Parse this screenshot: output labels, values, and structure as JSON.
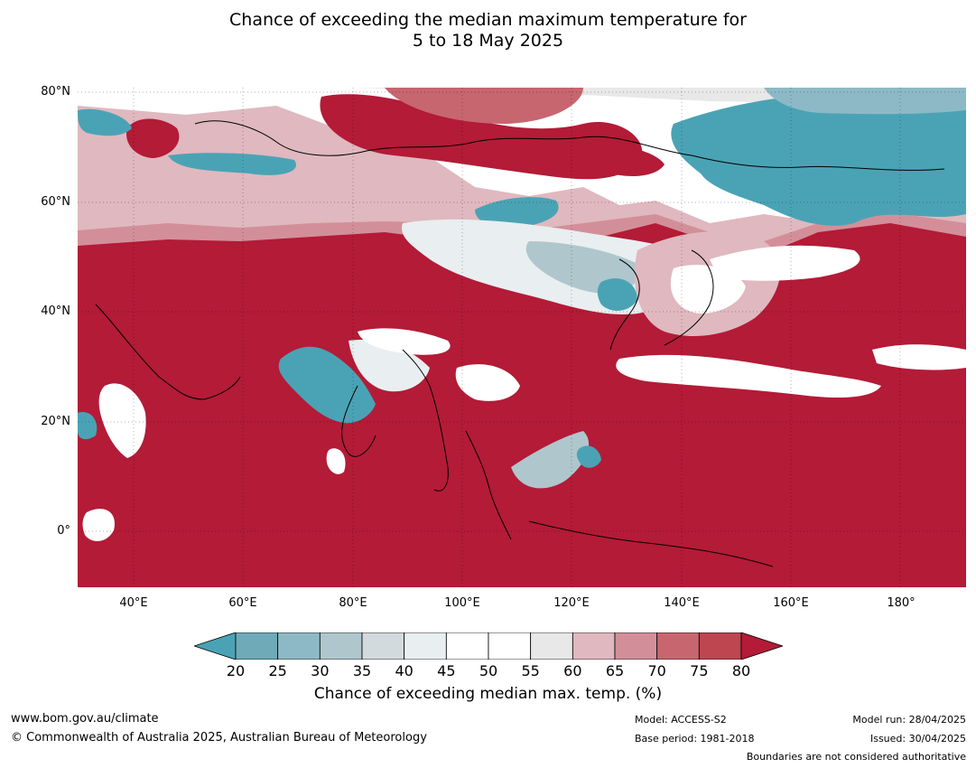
{
  "title": {
    "line1": "Chance of exceeding the median maximum temperature for",
    "line2": "5 to 18 May 2025"
  },
  "map": {
    "lat_labels": [
      "80°N",
      "60°N",
      "40°N",
      "20°N",
      "0°"
    ],
    "lon_labels": [
      "40°E",
      "60°E",
      "80°E",
      "100°E",
      "120°E",
      "140°E",
      "160°E",
      "180°"
    ],
    "colors": {
      "ocean_warm": "#b31b37",
      "cool": "#4aa3b5",
      "neutral": "#ffffff"
    }
  },
  "colorbar": {
    "ticks": [
      "20",
      "25",
      "30",
      "35",
      "40",
      "45",
      "50",
      "55",
      "60",
      "65",
      "70",
      "75",
      "80"
    ],
    "colors": [
      "#4aa3b5",
      "#6eaab8",
      "#8db9c6",
      "#afc6cd",
      "#d2dadd",
      "#e9eef0",
      "#ffffff",
      "#ffffff",
      "#e8e8e8",
      "#e0b8bf",
      "#d38f99",
      "#c7666f",
      "#bd4651",
      "#b31b37"
    ],
    "label": "Chance of exceeding median max. temp. (%)"
  },
  "footer": {
    "website": "www.bom.gov.au/climate",
    "copyright": "© Commonwealth of Australia 2025, Australian Bureau of Meteorology",
    "model": "Model: ACCESS-S2",
    "base_period": "Base period: 1981-2018",
    "model_run": "Model run: 28/04/2025",
    "issued": "Issued: 30/04/2025",
    "boundaries": "Boundaries are not considered authoritative"
  }
}
